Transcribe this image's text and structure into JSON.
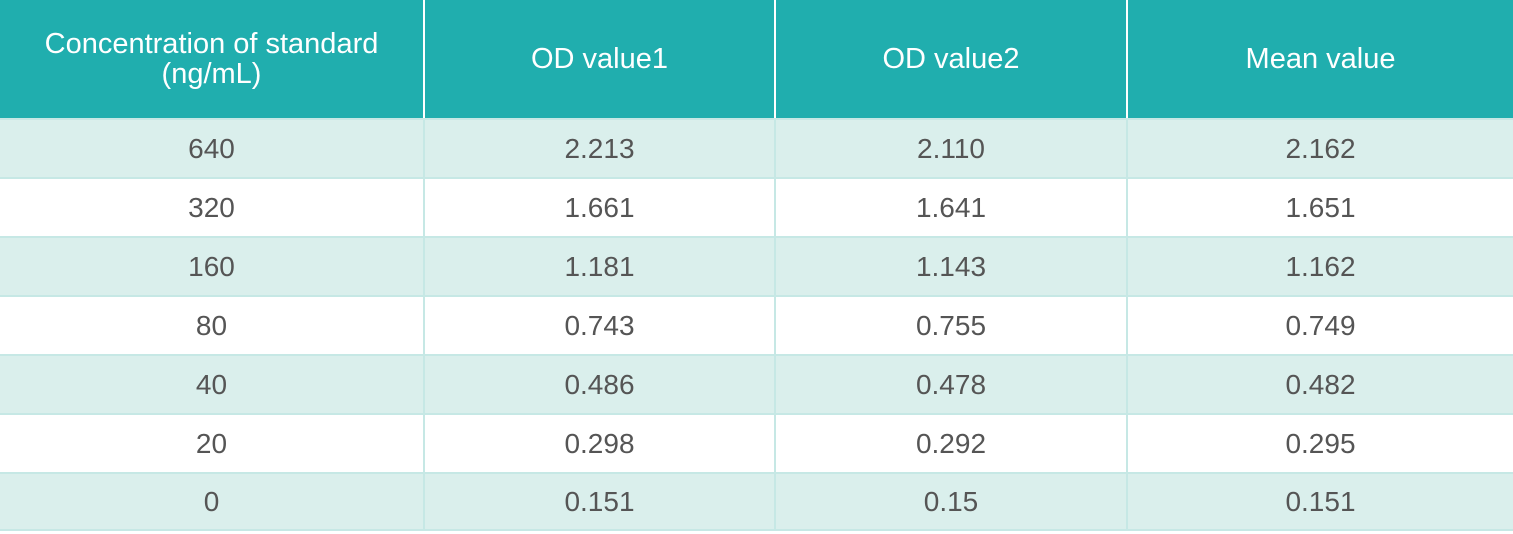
{
  "table": {
    "columns": [
      "Concentration of standard (ng/mL)",
      "OD value1",
      "OD value2",
      "Mean value"
    ],
    "rows": [
      [
        "640",
        "2.213",
        "2.110",
        "2.162"
      ],
      [
        "320",
        "1.661",
        "1.641",
        "1.651"
      ],
      [
        "160",
        "1.181",
        "1.143",
        "1.162"
      ],
      [
        "80",
        "0.743",
        "0.755",
        "0.749"
      ],
      [
        "40",
        "0.486",
        "0.478",
        "0.482"
      ],
      [
        "20",
        "0.298",
        "0.292",
        "0.295"
      ],
      [
        "0",
        "0.151",
        "0.15",
        "0.151"
      ]
    ]
  },
  "colors": {
    "header_background": "#20aeae",
    "header_text": "#ffffff",
    "row_odd_background": "#daefec",
    "row_even_background": "#ffffff",
    "cell_text": "#555555",
    "grid_line": "#c6e8e5"
  }
}
